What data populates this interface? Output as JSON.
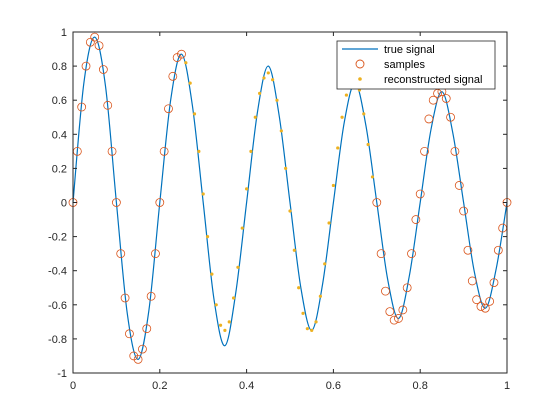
{
  "chart_data": {
    "type": "line",
    "title": "",
    "xlabel": "",
    "ylabel": "",
    "xlim": [
      0,
      1
    ],
    "ylim": [
      -1,
      1
    ],
    "x_ticks": [
      0,
      0.2,
      0.4,
      0.6,
      0.8,
      1
    ],
    "x_tick_labels": [
      "0",
      "0.2",
      "0.4",
      "0.6",
      "0.8",
      "1"
    ],
    "y_ticks": [
      -1,
      -0.8,
      -0.6,
      -0.4,
      -0.2,
      0,
      0.2,
      0.4,
      0.6,
      0.8,
      1
    ],
    "y_tick_labels": [
      "-1",
      "-0.8",
      "-0.6",
      "-0.4",
      "-0.2",
      "0",
      "0.2",
      "0.4",
      "0.6",
      "0.8",
      "1"
    ],
    "grid": false,
    "legend": {
      "position": "top-right",
      "entries": [
        "true signal",
        "samples",
        "reconstructed signal"
      ]
    },
    "series": [
      {
        "name": "true signal",
        "style": "line",
        "color": "#0072BD",
        "x": [
          0,
          0.025,
          0.05,
          0.075,
          0.1,
          0.125,
          0.15,
          0.175,
          0.2,
          0.225,
          0.25,
          0.275,
          0.3,
          0.325,
          0.35,
          0.375,
          0.4,
          0.425,
          0.45,
          0.475,
          0.5,
          0.525,
          0.55,
          0.575,
          0.6,
          0.625,
          0.65,
          0.675,
          0.7,
          0.725,
          0.75,
          0.775,
          0.8,
          0.825,
          0.85,
          0.875,
          0.9,
          0.925,
          0.95,
          0.975,
          1
        ],
        "y": [
          0,
          0.7,
          0.97,
          0.68,
          0,
          -0.65,
          -0.92,
          -0.63,
          0,
          0.6,
          0.87,
          0.57,
          0,
          -0.57,
          -0.84,
          -0.53,
          0,
          0.53,
          0.8,
          0.51,
          0,
          -0.5,
          -0.75,
          -0.48,
          0,
          0.47,
          0.7,
          0.45,
          0,
          -0.45,
          -0.68,
          -0.43,
          0,
          0.43,
          0.65,
          0.41,
          0,
          -0.41,
          -0.62,
          -0.39,
          0
        ]
      },
      {
        "name": "samples",
        "style": "circle-marker",
        "color": "#D95319",
        "x": [
          0,
          0.01,
          0.02,
          0.03,
          0.04,
          0.05,
          0.06,
          0.07,
          0.08,
          0.09,
          0.1,
          0.11,
          0.12,
          0.13,
          0.14,
          0.15,
          0.16,
          0.17,
          0.18,
          0.19,
          0.2,
          0.21,
          0.22,
          0.23,
          0.24,
          0.25,
          0.7,
          0.71,
          0.72,
          0.73,
          0.74,
          0.75,
          0.76,
          0.77,
          0.78,
          0.79,
          0.8,
          0.81,
          0.82,
          0.83,
          0.84,
          0.85,
          0.86,
          0.87,
          0.88,
          0.89,
          0.9,
          0.91,
          0.92,
          0.93,
          0.94,
          0.95,
          0.96,
          0.97,
          0.98,
          0.99,
          1
        ],
        "y": [
          0,
          0.3,
          0.56,
          0.8,
          0.94,
          0.97,
          0.92,
          0.78,
          0.57,
          0.3,
          0,
          -0.3,
          -0.56,
          -0.77,
          -0.9,
          -0.92,
          -0.86,
          -0.74,
          -0.55,
          -0.3,
          0,
          0.3,
          0.55,
          0.74,
          0.85,
          0.87,
          0,
          -0.3,
          -0.52,
          -0.64,
          -0.69,
          -0.68,
          -0.63,
          -0.5,
          -0.3,
          -0.1,
          0.05,
          0.3,
          0.49,
          0.6,
          0.64,
          0.65,
          0.61,
          0.5,
          0.3,
          0.1,
          -0.05,
          -0.28,
          -0.46,
          -0.57,
          -0.61,
          -0.62,
          -0.58,
          -0.47,
          -0.28,
          -0.15,
          0
        ]
      },
      {
        "name": "reconstructed signal",
        "style": "dot-marker",
        "color": "#EDB120",
        "x": [
          0.26,
          0.27,
          0.28,
          0.29,
          0.3,
          0.31,
          0.32,
          0.33,
          0.34,
          0.35,
          0.36,
          0.37,
          0.38,
          0.39,
          0.4,
          0.41,
          0.42,
          0.43,
          0.44,
          0.45,
          0.46,
          0.47,
          0.48,
          0.49,
          0.5,
          0.51,
          0.52,
          0.53,
          0.54,
          0.55,
          0.56,
          0.57,
          0.58,
          0.59,
          0.6,
          0.61,
          0.62,
          0.63,
          0.64,
          0.65,
          0.66,
          0.67,
          0.68,
          0.69
        ],
        "y": [
          0.82,
          0.7,
          0.52,
          0.3,
          0.05,
          -0.2,
          -0.42,
          -0.6,
          -0.72,
          -0.75,
          -0.7,
          -0.56,
          -0.38,
          -0.15,
          0.08,
          0.3,
          0.5,
          0.64,
          0.73,
          0.76,
          0.72,
          0.6,
          0.42,
          0.2,
          -0.05,
          -0.28,
          -0.5,
          -0.65,
          -0.74,
          -0.75,
          -0.7,
          -0.55,
          -0.36,
          -0.12,
          0.1,
          0.32,
          0.5,
          0.63,
          0.7,
          0.72,
          0.66,
          0.52,
          0.34,
          0.15
        ]
      }
    ]
  }
}
